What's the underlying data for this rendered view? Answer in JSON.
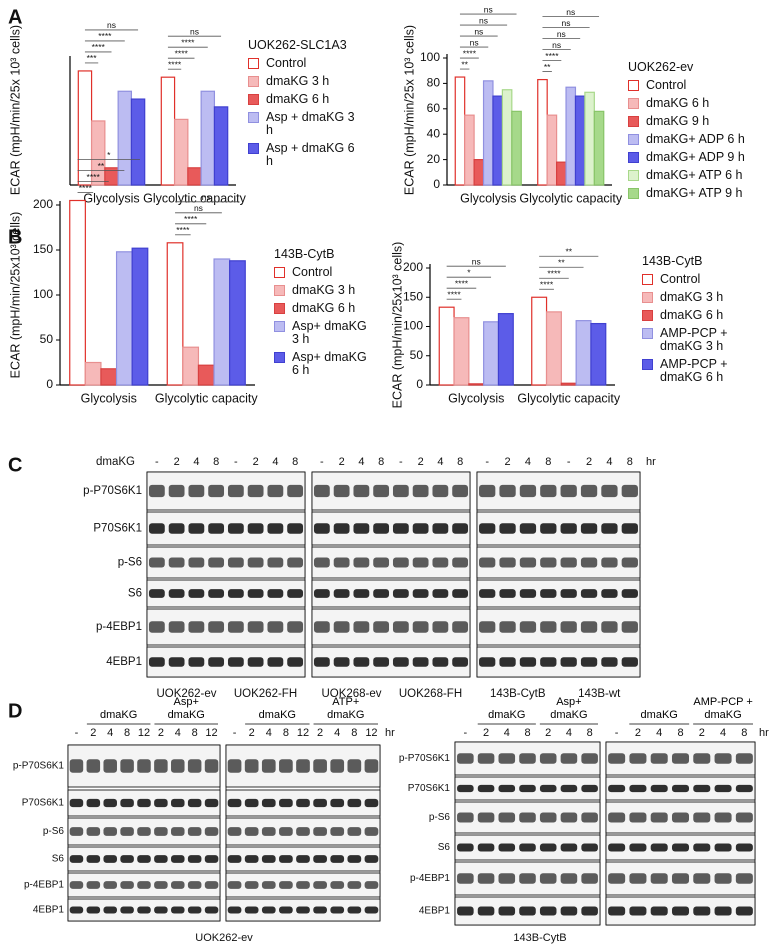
{
  "panel_labels": [
    "A",
    "B",
    "C",
    "D"
  ],
  "chart_data": [
    {
      "type": "bar",
      "ylabel": "ECAR (mpH/min/25x 10³ cells)",
      "legend_title": "UOK262-SLC1A3",
      "categories": [
        "Glycolysis",
        "Glycolytic capacity"
      ],
      "ylim": [
        0,
        80
      ],
      "series": [
        {
          "name": "Control",
          "color": "#ffffff",
          "edgecolor": "#e0302a",
          "values": [
            73,
            69
          ]
        },
        {
          "name": "dmaKG 3 h",
          "color": "#f6b9b9",
          "edgecolor": "#e88f8f",
          "values": [
            41,
            42
          ]
        },
        {
          "name": "dmaKG 6 h",
          "color": "#e85a5a",
          "edgecolor": "#d84040",
          "values": [
            11,
            11
          ]
        },
        {
          "name": "Asp + dmaKG 3 h",
          "color": "#bcbcf2",
          "edgecolor": "#9090e0",
          "values": [
            60,
            60
          ]
        },
        {
          "name": "Asp + dmaKG 6 h",
          "color": "#5c5ce8",
          "edgecolor": "#4040d0",
          "values": [
            55,
            50
          ]
        }
      ],
      "significance": [
        [
          "***",
          "****",
          "****",
          "ns"
        ],
        [
          "****",
          "****",
          "****",
          "ns"
        ]
      ]
    },
    {
      "type": "bar",
      "ylabel": "ECAR (mpH/min/25x 10³ cells)",
      "legend_title": "UOK262-ev",
      "categories": [
        "Glycolysis",
        "Glycolytic capacity"
      ],
      "ylim": [
        0,
        100
      ],
      "yticks": [
        0,
        20,
        40,
        60,
        80,
        100
      ],
      "series": [
        {
          "name": "Control",
          "color": "#ffffff",
          "edgecolor": "#e0302a",
          "values": [
            85,
            83
          ]
        },
        {
          "name": "dmaKG 6 h",
          "color": "#f6b9b9",
          "edgecolor": "#e88f8f",
          "values": [
            55,
            55
          ]
        },
        {
          "name": "dmaKG 9 h",
          "color": "#e85a5a",
          "edgecolor": "#d84040",
          "values": [
            20,
            18
          ]
        },
        {
          "name": "dmaKG+ ADP 6 h",
          "color": "#bcbcf2",
          "edgecolor": "#9090e0",
          "values": [
            82,
            77
          ]
        },
        {
          "name": "dmaKG+ ADP 9 h",
          "color": "#5c5ce8",
          "edgecolor": "#4040d0",
          "values": [
            70,
            70
          ]
        },
        {
          "name": "dmaKG+ ATP 6 h",
          "color": "#dcf2cc",
          "edgecolor": "#a8d88a",
          "values": [
            75,
            73
          ]
        },
        {
          "name": "dmaKG+ ATP 9 h",
          "color": "#a6d98a",
          "edgecolor": "#88c468",
          "values": [
            58,
            58
          ]
        }
      ],
      "significance": [
        [
          "**",
          "****",
          "ns",
          "ns",
          "ns",
          "ns"
        ],
        [
          "**",
          "****",
          "ns",
          "ns",
          "ns",
          "ns"
        ]
      ]
    },
    {
      "type": "bar",
      "ylabel": "ECAR (mpH/min/25x10³ cells)",
      "legend_title": "143B-CytB",
      "categories": [
        "Glycolysis",
        "Glycolytic capacity"
      ],
      "ylim": [
        0,
        200
      ],
      "yticks": [
        0,
        50,
        100,
        150,
        200
      ],
      "series": [
        {
          "name": "Control",
          "color": "#ffffff",
          "edgecolor": "#e0302a",
          "values": [
            205,
            158
          ]
        },
        {
          "name": "dmaKG 3 h",
          "color": "#f6b9b9",
          "edgecolor": "#e88f8f",
          "values": [
            25,
            42
          ]
        },
        {
          "name": "dmaKG 6 h",
          "color": "#e85a5a",
          "edgecolor": "#d84040",
          "values": [
            18,
            22
          ]
        },
        {
          "name": "Asp+ dmaKG 3 h",
          "color": "#bcbcf2",
          "edgecolor": "#9090e0",
          "values": [
            148,
            140
          ]
        },
        {
          "name": "Asp+ dmaKG 6 h",
          "color": "#5c5ce8",
          "edgecolor": "#4040d0",
          "values": [
            152,
            138
          ]
        }
      ],
      "significance": [
        [
          "****",
          "****",
          "**",
          "*"
        ],
        [
          "****",
          "****",
          "ns",
          "ns"
        ]
      ]
    },
    {
      "type": "bar",
      "ylabel": "ECAR (mpH/min/25x10³ cells)",
      "legend_title": "143B-CytB",
      "categories": [
        "Glycolysis",
        "Glycolytic capacity"
      ],
      "ylim": [
        0,
        200
      ],
      "yticks": [
        0,
        50,
        100,
        150,
        200
      ],
      "series": [
        {
          "name": "Control",
          "color": "#ffffff",
          "edgecolor": "#e0302a",
          "values": [
            133,
            150
          ]
        },
        {
          "name": "dmaKG 3 h",
          "color": "#f6b9b9",
          "edgecolor": "#e88f8f",
          "values": [
            115,
            125
          ]
        },
        {
          "name": "dmaKG 6 h",
          "color": "#e85a5a",
          "edgecolor": "#d84040",
          "values": [
            2,
            3
          ]
        },
        {
          "name": "AMP-PCP + dmaKG 3 h",
          "color": "#bcbcf2",
          "edgecolor": "#9090e0",
          "values": [
            108,
            110
          ]
        },
        {
          "name": "AMP-PCP + dmaKG 6 h",
          "color": "#5c5ce8",
          "edgecolor": "#4040d0",
          "values": [
            122,
            105
          ]
        }
      ],
      "significance": [
        [
          "****",
          "****",
          "*",
          "ns"
        ],
        [
          "****",
          "****",
          "**",
          "**"
        ]
      ]
    }
  ],
  "panel_c": {
    "treatment": "dmaKG",
    "unit": "hr",
    "lanes": [
      "-",
      "2",
      "4",
      "8",
      "-",
      "2",
      "4",
      "8",
      "-",
      "2",
      "4",
      "8",
      "-",
      "2",
      "4",
      "8",
      "-",
      "2",
      "4",
      "8",
      "-",
      "2",
      "4",
      "8"
    ],
    "proteins": [
      "p-P70S6K1",
      "P70S6K1",
      "p-S6",
      "S6",
      "p-4EBP1",
      "4EBP1"
    ],
    "cell_lines": [
      "UOK262-ev",
      "UOK262-FH",
      "UOK268-ev",
      "UOK268-FH",
      "143B-CytB",
      "143B-wt"
    ]
  },
  "panel_d": {
    "left": {
      "groups": [
        "dmaKG",
        "Asp+ dmaKG",
        "dmaKG",
        "ATP+ dmaKG"
      ],
      "unit": "hr",
      "lanes": [
        "-",
        "2",
        "4",
        "8",
        "12",
        "2",
        "4",
        "8",
        "12",
        "-",
        "2",
        "4",
        "8",
        "12",
        "2",
        "4",
        "8",
        "12"
      ],
      "proteins": [
        "p-P70S6K1",
        "P70S6K1",
        "p-S6",
        "S6",
        "p-4EBP1",
        "4EBP1"
      ],
      "cell_line": "UOK262-ev"
    },
    "right": {
      "groups": [
        "dmaKG",
        "Asp+ dmaKG",
        "dmaKG",
        "AMP-PCP + dmaKG"
      ],
      "unit": "hr",
      "lanes": [
        "-",
        "2",
        "4",
        "8",
        "2",
        "4",
        "8",
        "-",
        "2",
        "4",
        "8",
        "2",
        "4",
        "8"
      ],
      "proteins": [
        "p-P70S6K1",
        "P70S6K1",
        "p-S6",
        "S6",
        "p-4EBP1",
        "4EBP1"
      ],
      "cell_line": "143B-CytB"
    }
  }
}
